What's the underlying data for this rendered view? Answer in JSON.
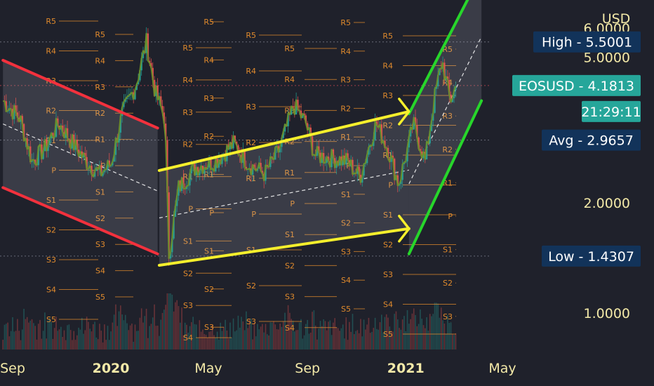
{
  "header": {
    "currency": "USD"
  },
  "axis": {
    "y_ticks": [
      "6.0000",
      "5.0000",
      "2.0000",
      "1.0000"
    ],
    "x_ticks": [
      {
        "label": "Sep",
        "bold": false
      },
      {
        "label": "2020",
        "bold": true
      },
      {
        "label": "May",
        "bold": false
      },
      {
        "label": "Sep",
        "bold": false
      },
      {
        "label": "2021",
        "bold": true
      },
      {
        "label": "May",
        "bold": false
      }
    ]
  },
  "price_tags": [
    {
      "key": "high",
      "label": "High",
      "value": "5.5001",
      "color": "#12335a"
    },
    {
      "key": "symbol",
      "label": "EOSUSD",
      "value": "4.1813",
      "color": "#26a69a"
    },
    {
      "key": "countdown",
      "label": "",
      "value": "21:29:11",
      "color": "#26a69a"
    },
    {
      "key": "avg",
      "label": "Avg",
      "value": "2.9657",
      "color": "#12335a"
    },
    {
      "key": "low",
      "label": "Low",
      "value": "1.4307",
      "color": "#12335a"
    }
  ],
  "pivot_labels": [
    "R5",
    "R4",
    "R3",
    "R2",
    "R1",
    "P",
    "S1",
    "S2",
    "S3",
    "S4",
    "S5"
  ],
  "chart_data": {
    "type": "line",
    "symbol": "EOSUSD",
    "currency": "USD",
    "x_range": [
      "2019-08-20",
      "2021-05-15"
    ],
    "y_scale": "log",
    "x_ticks": [
      "Sep",
      "2020",
      "May",
      "Sep",
      "2021",
      "May"
    ],
    "y_ticks": [
      1,
      2,
      5,
      6
    ],
    "price_series": [
      [
        "2019-08-20",
        3.8
      ],
      [
        "2019-09-10",
        3.4
      ],
      [
        "2019-09-25",
        2.6
      ],
      [
        "2019-10-10",
        2.8
      ],
      [
        "2019-10-28",
        3.3
      ],
      [
        "2019-11-15",
        2.9
      ],
      [
        "2019-12-01",
        2.6
      ],
      [
        "2019-12-18",
        2.4
      ],
      [
        "2020-01-01",
        2.55
      ],
      [
        "2020-01-15",
        3.5
      ],
      [
        "2020-02-01",
        4.2
      ],
      [
        "2020-02-14",
        5.5
      ],
      [
        "2020-02-25",
        4.0
      ],
      [
        "2020-03-08",
        3.4
      ],
      [
        "2020-03-13",
        1.45
      ],
      [
        "2020-03-25",
        2.2
      ],
      [
        "2020-04-15",
        2.5
      ],
      [
        "2020-05-10",
        2.6
      ],
      [
        "2020-06-01",
        2.9
      ],
      [
        "2020-06-20",
        2.55
      ],
      [
        "2020-07-10",
        2.4
      ],
      [
        "2020-07-28",
        2.8
      ],
      [
        "2020-08-15",
        3.7
      ],
      [
        "2020-08-30",
        3.3
      ],
      [
        "2020-09-10",
        2.7
      ],
      [
        "2020-10-01",
        2.65
      ],
      [
        "2020-10-20",
        2.6
      ],
      [
        "2020-11-05",
        2.35
      ],
      [
        "2020-11-25",
        3.3
      ],
      [
        "2020-12-10",
        2.8
      ],
      [
        "2020-12-23",
        2.25
      ],
      [
        "2021-01-05",
        2.9
      ],
      [
        "2021-01-10",
        3.3
      ],
      [
        "2021-01-25",
        2.6
      ],
      [
        "2021-02-05",
        3.8
      ],
      [
        "2021-02-15",
        4.9
      ],
      [
        "2021-02-25",
        3.8
      ],
      [
        "2021-03-05",
        4.18
      ]
    ],
    "price_tags": {
      "high": 5.5001,
      "last": 4.1813,
      "avg": 2.9657,
      "low": 1.4307
    },
    "channels": [
      {
        "color": "red",
        "name": "",
        "upper": [
          [
            "2019-08-20",
            4.9
          ],
          [
            "2020-02-28",
            3.2
          ]
        ],
        "lower": [
          [
            "2019-08-20",
            2.2
          ],
          [
            "2020-02-28",
            1.45
          ]
        ]
      },
      {
        "color": "yellow",
        "name": "",
        "upper": [
          [
            "2020-03-01",
            2.45
          ],
          [
            "2021-01-05",
            3.55
          ]
        ],
        "lower": [
          [
            "2020-03-01",
            1.35
          ],
          [
            "2021-01-05",
            1.7
          ]
        ]
      },
      {
        "color": "green",
        "name": "",
        "upper": [
          [
            "2021-01-05",
            3.5
          ],
          [
            "2021-04-05",
            8.5
          ]
        ],
        "lower": [
          [
            "2021-01-05",
            1.45
          ],
          [
            "2021-04-05",
            3.8
          ]
        ]
      }
    ]
  }
}
